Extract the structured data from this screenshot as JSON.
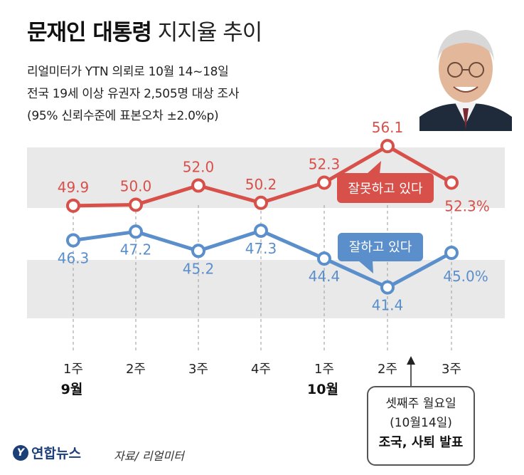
{
  "title": {
    "bold": "문재인 대통령",
    "light": "지지율 추이"
  },
  "subtitle": [
    "리얼미터가 YTN 의뢰로 10월 14~18일",
    "전국 19세 이상 유권자 2,505명 대상 조사",
    "(95% 신뢰수준에 표본오차 ±2.0%p)"
  ],
  "chart_data": {
    "type": "line",
    "categories": [
      "1주",
      "2주",
      "3주",
      "4주",
      "1주",
      "2주",
      "3주"
    ],
    "months": [
      {
        "label": "9월",
        "index": 0
      },
      {
        "label": "10월",
        "index": 4
      }
    ],
    "series": [
      {
        "name": "잘못하고 있다",
        "values": [
          49.9,
          50.0,
          52.0,
          50.2,
          52.3,
          56.1,
          52.3
        ],
        "color": "#d8504a"
      },
      {
        "name": "잘하고 있다",
        "values": [
          46.3,
          47.2,
          45.2,
          47.3,
          44.4,
          41.4,
          45.0
        ],
        "color": "#5b8fcb"
      }
    ],
    "value_labels": {
      "neg": [
        "49.9",
        "50.0",
        "52.0",
        "50.2",
        "52.3",
        "56.1",
        "52.3%"
      ],
      "pos": [
        "46.3",
        "47.2",
        "45.2",
        "47.3",
        "44.4",
        "41.4",
        "45.0%"
      ]
    },
    "grid_band_color": "#e9e9e9"
  },
  "annotation": {
    "lines": [
      "셋째주 월요일",
      "(10월14일)",
      "조국, 사퇴 발표"
    ]
  },
  "footer": {
    "logo": "연합뉴스",
    "source": "자료/ 리얼미터"
  }
}
